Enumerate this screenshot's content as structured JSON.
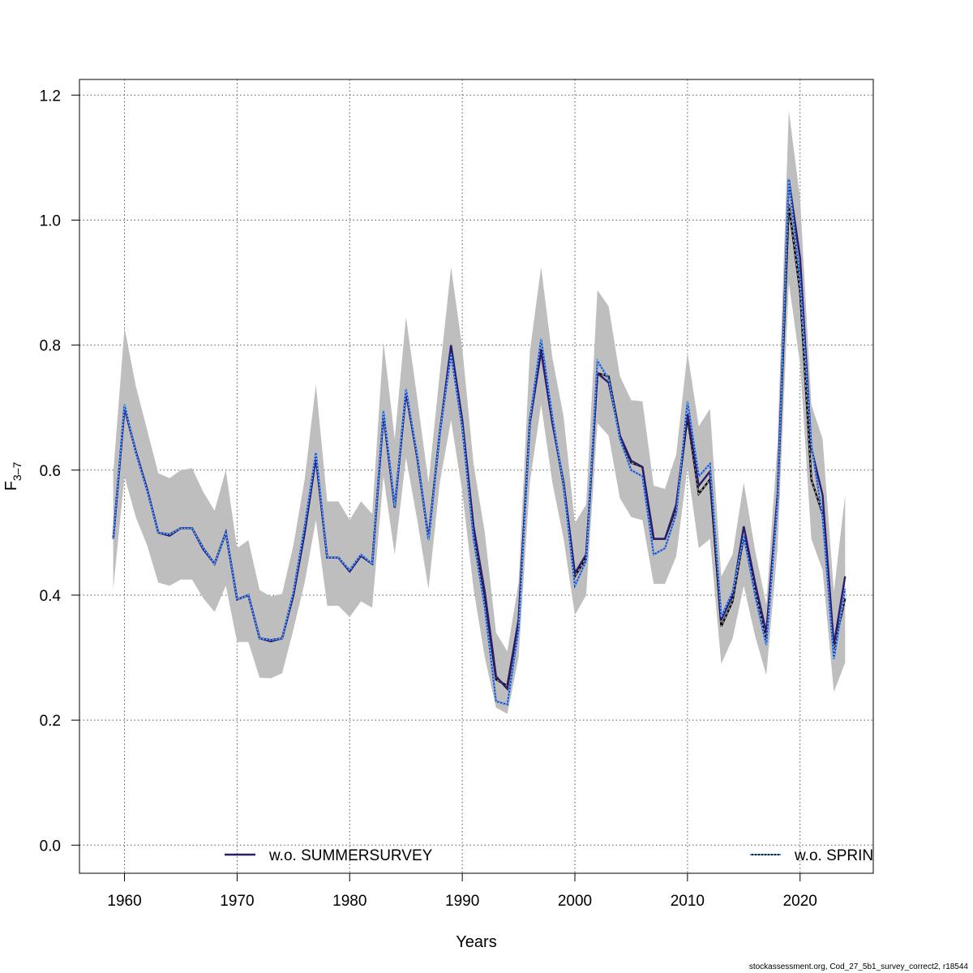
{
  "chart_data": {
    "type": "line",
    "xlabel": "Years",
    "ylabel_main": "F",
    "ylabel_sub": "3–7",
    "xlim": [
      1956,
      2026.5
    ],
    "ylim": [
      -0.045,
      1.225
    ],
    "xticks": [
      1960,
      1970,
      1980,
      1990,
      2000,
      2010,
      2020
    ],
    "yticks": [
      0.0,
      0.2,
      0.4,
      0.6,
      0.8,
      1.0,
      1.2
    ],
    "ytick_labels": [
      "0.0",
      "0.2",
      "0.4",
      "0.6",
      "0.8",
      "1.0",
      "1.2"
    ],
    "grid": true,
    "colors": {
      "band": "#bebebe",
      "base": "#000000",
      "summer": "#2d1b6b",
      "spring": "#1e3cc8",
      "spring_dots": "#6ac8f5"
    },
    "x": [
      1959,
      1960,
      1961,
      1962,
      1963,
      1964,
      1965,
      1966,
      1967,
      1968,
      1969,
      1970,
      1971,
      1972,
      1973,
      1974,
      1975,
      1976,
      1977,
      1978,
      1979,
      1980,
      1981,
      1982,
      1983,
      1984,
      1985,
      1986,
      1987,
      1988,
      1989,
      1990,
      1991,
      1992,
      1993,
      1994,
      1995,
      1996,
      1997,
      1998,
      1999,
      2000,
      2001,
      2002,
      2003,
      2004,
      2005,
      2006,
      2007,
      2008,
      2009,
      2010,
      2011,
      2012,
      2013,
      2014,
      2015,
      2016,
      2017,
      2018,
      2019,
      2020,
      2021,
      2022,
      2023,
      2024
    ],
    "ci_low": [
      0.41,
      0.59,
      0.525,
      0.48,
      0.42,
      0.415,
      0.425,
      0.425,
      0.395,
      0.373,
      0.415,
      0.325,
      0.325,
      0.268,
      0.267,
      0.275,
      0.345,
      0.42,
      0.52,
      0.383,
      0.383,
      0.365,
      0.39,
      0.38,
      0.59,
      0.465,
      0.62,
      0.52,
      0.41,
      0.58,
      0.68,
      0.565,
      0.41,
      0.3,
      0.22,
      0.21,
      0.3,
      0.58,
      0.705,
      0.58,
      0.49,
      0.368,
      0.4,
      0.675,
      0.655,
      0.555,
      0.525,
      0.52,
      0.418,
      0.418,
      0.462,
      0.605,
      0.475,
      0.49,
      0.29,
      0.33,
      0.415,
      0.335,
      0.272,
      0.475,
      0.9,
      0.77,
      0.49,
      0.44,
      0.245,
      0.292
    ],
    "ci_high": [
      0.595,
      0.828,
      0.735,
      0.665,
      0.595,
      0.587,
      0.6,
      0.603,
      0.565,
      0.535,
      0.6,
      0.475,
      0.488,
      0.408,
      0.398,
      0.402,
      0.48,
      0.585,
      0.737,
      0.55,
      0.55,
      0.52,
      0.55,
      0.53,
      0.805,
      0.65,
      0.845,
      0.715,
      0.58,
      0.755,
      0.925,
      0.795,
      0.61,
      0.5,
      0.34,
      0.31,
      0.42,
      0.79,
      0.925,
      0.78,
      0.685,
      0.515,
      0.545,
      0.888,
      0.862,
      0.75,
      0.712,
      0.71,
      0.575,
      0.57,
      0.625,
      0.788,
      0.67,
      0.698,
      0.43,
      0.465,
      0.58,
      0.472,
      0.385,
      0.645,
      1.175,
      1.035,
      0.705,
      0.65,
      0.405,
      0.56
    ],
    "series": [
      {
        "name": "",
        "style": "base-dashed",
        "values": [
          0.49,
          0.7,
          0.63,
          0.57,
          0.5,
          0.497,
          0.507,
          0.507,
          0.475,
          0.45,
          0.5,
          0.393,
          0.4,
          0.331,
          0.328,
          0.331,
          0.4,
          0.5,
          0.62,
          0.46,
          0.46,
          0.438,
          0.463,
          0.45,
          0.69,
          0.54,
          0.725,
          0.62,
          0.49,
          0.66,
          0.79,
          0.67,
          0.5,
          0.4,
          0.265,
          0.255,
          0.36,
          0.68,
          0.795,
          0.68,
          0.575,
          0.43,
          0.46,
          0.755,
          0.75,
          0.655,
          0.612,
          0.605,
          0.49,
          0.49,
          0.54,
          0.685,
          0.562,
          0.585,
          0.35,
          0.39,
          0.495,
          0.41,
          0.33,
          0.555,
          1.025,
          0.885,
          0.585,
          0.53,
          0.315,
          0.395
        ]
      },
      {
        "name": "w.o. SUMMERSURVEY",
        "style": "summer",
        "values": [
          0.49,
          0.7,
          0.63,
          0.57,
          0.5,
          0.495,
          0.507,
          0.507,
          0.473,
          0.45,
          0.5,
          0.393,
          0.4,
          0.331,
          0.326,
          0.331,
          0.4,
          0.5,
          0.62,
          0.46,
          0.46,
          0.438,
          0.463,
          0.45,
          0.69,
          0.54,
          0.725,
          0.62,
          0.49,
          0.66,
          0.8,
          0.68,
          0.51,
          0.405,
          0.27,
          0.25,
          0.36,
          0.675,
          0.79,
          0.675,
          0.58,
          0.435,
          0.465,
          0.755,
          0.74,
          0.655,
          0.615,
          0.605,
          0.49,
          0.49,
          0.545,
          0.69,
          0.575,
          0.598,
          0.36,
          0.4,
          0.51,
          0.42,
          0.34,
          0.56,
          1.065,
          0.94,
          0.635,
          0.56,
          0.32,
          0.43
        ]
      },
      {
        "name": "w.o. SPRINGSURVEY",
        "style": "spring",
        "values": [
          0.49,
          0.705,
          0.628,
          0.568,
          0.5,
          0.497,
          0.507,
          0.507,
          0.475,
          0.45,
          0.5,
          0.393,
          0.4,
          0.331,
          0.328,
          0.331,
          0.405,
          0.51,
          0.628,
          0.46,
          0.46,
          0.44,
          0.465,
          0.45,
          0.695,
          0.542,
          0.73,
          0.622,
          0.488,
          0.66,
          0.785,
          0.668,
          0.49,
          0.38,
          0.23,
          0.225,
          0.345,
          0.68,
          0.81,
          0.685,
          0.575,
          0.415,
          0.455,
          0.775,
          0.745,
          0.65,
          0.6,
          0.59,
          0.465,
          0.475,
          0.53,
          0.71,
          0.59,
          0.61,
          0.365,
          0.405,
          0.495,
          0.4,
          0.32,
          0.55,
          1.065,
          0.905,
          0.64,
          0.525,
          0.298,
          0.41
        ]
      }
    ],
    "legend": [
      {
        "label": "w.o. SUMMERSURVEY",
        "style": "summer",
        "placement": "bottom-left"
      },
      {
        "label": "w.o. SPRIN",
        "style": "spring",
        "placement": "bottom-right"
      }
    ]
  },
  "footer": "stockassessment.org, Cod_27_5b1_survey_correct2, r18544"
}
